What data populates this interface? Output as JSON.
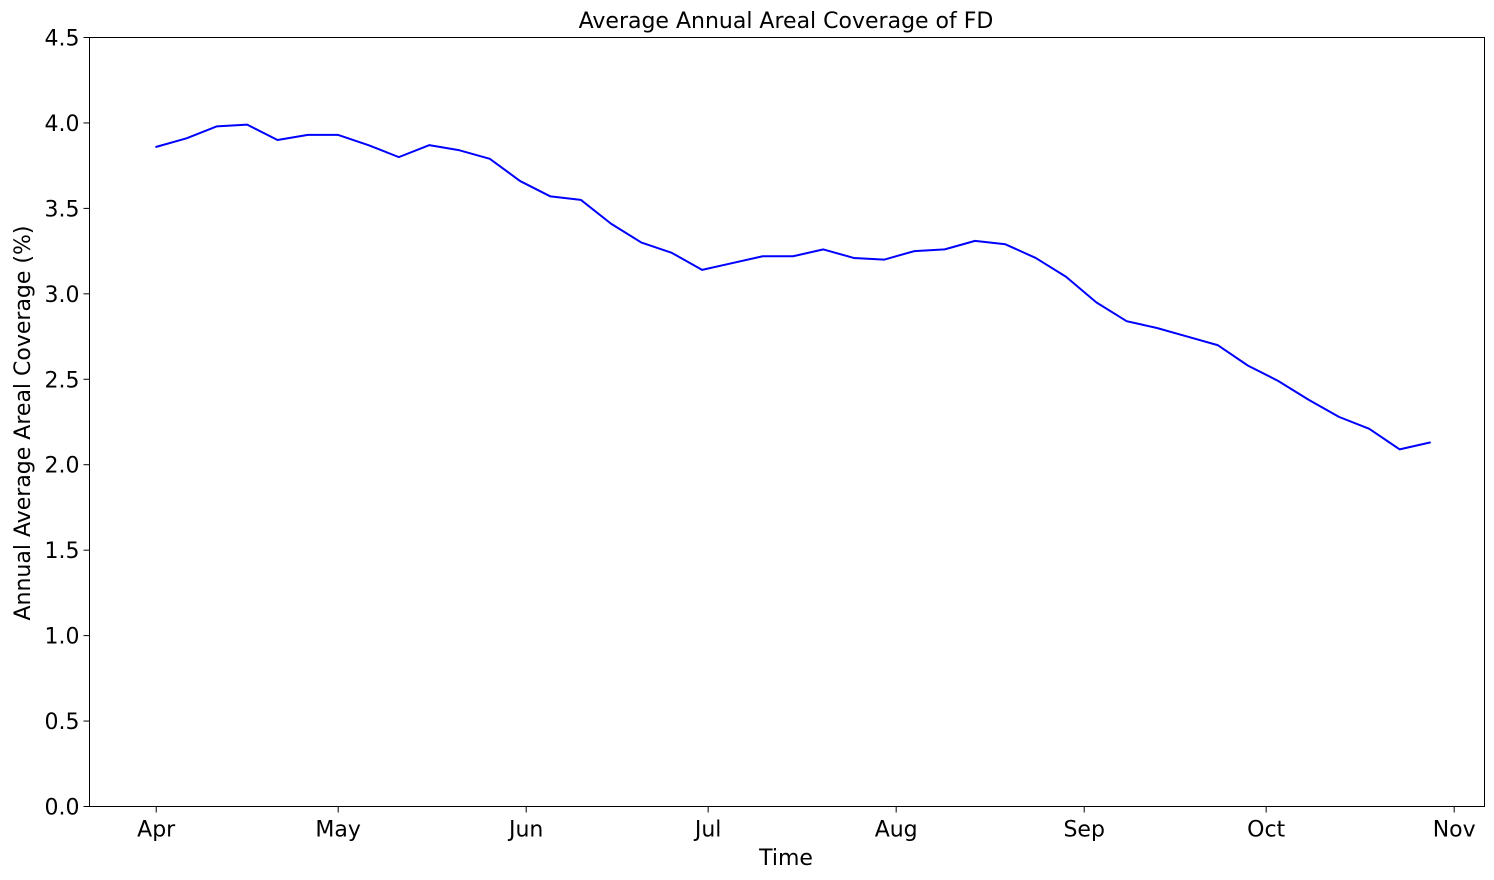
{
  "chart_data": {
    "type": "line",
    "title": "Average Annual Areal Coverage of FD",
    "xlabel": "Time",
    "ylabel": "Annual Average Areal Coverage (%)",
    "x_axis": "date",
    "x_ticks": [
      {
        "date": "2000-04-01",
        "label": "Apr"
      },
      {
        "date": "2000-05-01",
        "label": "May"
      },
      {
        "date": "2000-06-01",
        "label": "Jun"
      },
      {
        "date": "2000-07-01",
        "label": "Jul"
      },
      {
        "date": "2000-08-01",
        "label": "Aug"
      },
      {
        "date": "2000-09-01",
        "label": "Sep"
      },
      {
        "date": "2000-10-01",
        "label": "Oct"
      },
      {
        "date": "2000-11-01",
        "label": "Nov"
      }
    ],
    "xlim": [
      "2000-03-21",
      "2000-11-06"
    ],
    "ylim": [
      0,
      4.5
    ],
    "y_ticks": [
      "0.0",
      "0.5",
      "1.0",
      "1.5",
      "2.0",
      "2.5",
      "3.0",
      "3.5",
      "4.0",
      "4.5"
    ],
    "grid": false,
    "legend": "none",
    "series": [
      {
        "color": "#0000ff",
        "x": [
          "2000-04-01",
          "2000-04-06",
          "2000-04-11",
          "2000-04-16",
          "2000-04-21",
          "2000-04-26",
          "2000-05-01",
          "2000-05-06",
          "2000-05-11",
          "2000-05-16",
          "2000-05-21",
          "2000-05-26",
          "2000-05-31",
          "2000-06-05",
          "2000-06-10",
          "2000-06-15",
          "2000-06-20",
          "2000-06-25",
          "2000-06-30",
          "2000-07-05",
          "2000-07-10",
          "2000-07-15",
          "2000-07-20",
          "2000-07-25",
          "2000-07-30",
          "2000-08-04",
          "2000-08-09",
          "2000-08-14",
          "2000-08-19",
          "2000-08-24",
          "2000-08-29",
          "2000-09-03",
          "2000-09-08",
          "2000-09-13",
          "2000-09-18",
          "2000-09-23",
          "2000-09-28",
          "2000-10-03",
          "2000-10-08",
          "2000-10-13",
          "2000-10-18",
          "2000-10-23",
          "2000-10-28"
        ],
        "y": [
          3.86,
          3.91,
          3.98,
          3.99,
          3.9,
          3.93,
          3.93,
          3.87,
          3.8,
          3.87,
          3.84,
          3.79,
          3.66,
          3.57,
          3.55,
          3.41,
          3.3,
          3.24,
          3.14,
          3.18,
          3.22,
          3.22,
          3.26,
          3.21,
          3.2,
          3.25,
          3.26,
          3.31,
          3.29,
          3.21,
          3.1,
          2.95,
          2.84,
          2.8,
          2.75,
          2.7,
          2.58,
          2.49,
          2.38,
          2.28,
          2.21,
          2.09,
          2.13
        ]
      }
    ]
  }
}
